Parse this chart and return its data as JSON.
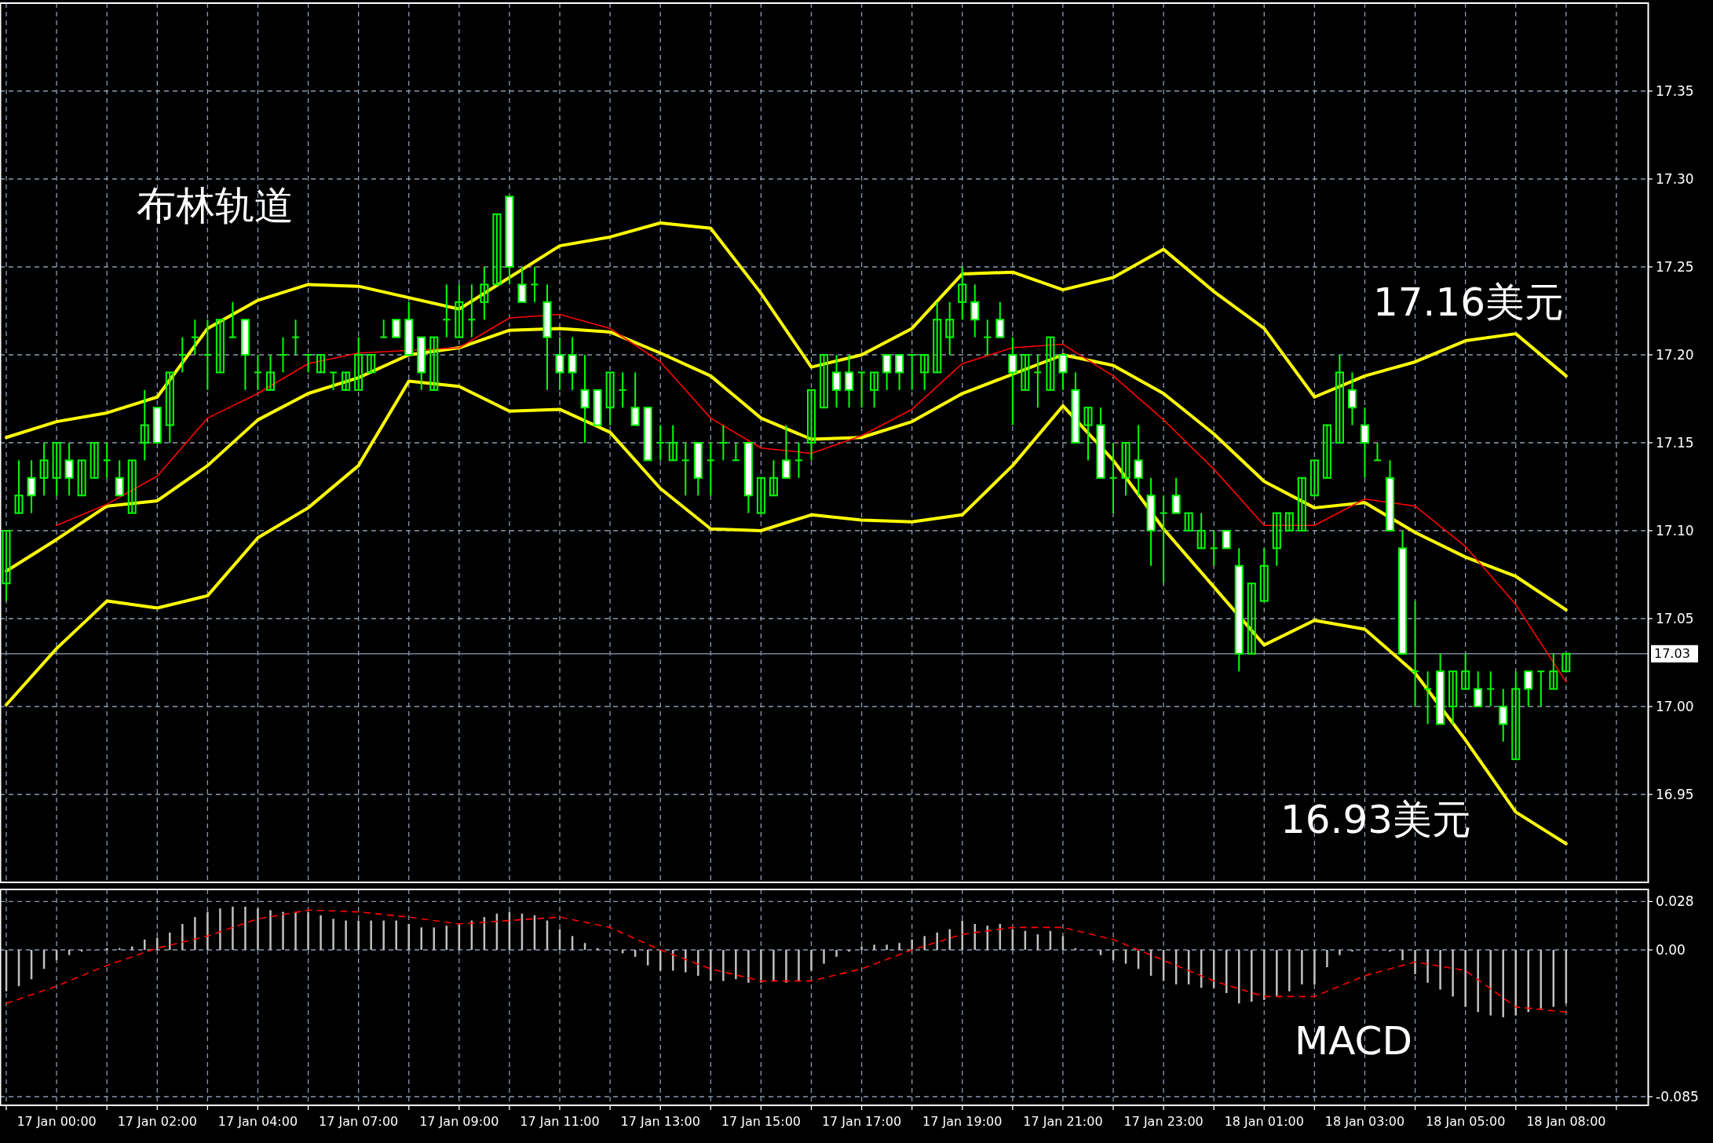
{
  "chart_data": [
    {
      "type": "candlestick",
      "color": "#00ff00",
      "grid": true,
      "tick_labels": "y",
      "ylim": [
        16.9,
        17.4
      ],
      "yticks": [
        16.95,
        {
          "value": 17.0,
          "label": "17.00"
        },
        17.05,
        {
          "value": 17.1,
          "label": "17.10"
        },
        17.15,
        {
          "value": 17.2,
          "label": "17.20"
        },
        17.25,
        {
          "value": 17.3,
          "label": "17.30"
        },
        17.35
      ],
      "ref_lines": [
        {
          "axis": "y",
          "value": 17.03,
          "label": "17.03",
          "color": "#778899"
        }
      ],
      "annotations": [
        "布林轨道",
        "17.16美元",
        "16.93美元"
      ],
      "categories": [
        null,
        null,
        null,
        null,
        null,
        null,
        null,
        null,
        null,
        null,
        null,
        null,
        null,
        null,
        null,
        null,
        null,
        null,
        null,
        null,
        null,
        null,
        null,
        null,
        null,
        null,
        null,
        null,
        null,
        null,
        null,
        null,
        null,
        null,
        null,
        null,
        null,
        null,
        null,
        null,
        null,
        null,
        null,
        null,
        null,
        null,
        null,
        null,
        null,
        null,
        null,
        null,
        null,
        null,
        null,
        null,
        null,
        null,
        null,
        null,
        null,
        null,
        null,
        null,
        null,
        null,
        null,
        null,
        null,
        null,
        null,
        null,
        null,
        null,
        null,
        null,
        null,
        null,
        null,
        null,
        null,
        null,
        null,
        null,
        null,
        null,
        null,
        null,
        null,
        null,
        null,
        null,
        null,
        null,
        null,
        null,
        null,
        null,
        null,
        null,
        null,
        null,
        null,
        null,
        null,
        null,
        null,
        null,
        null,
        null,
        null,
        null,
        null,
        null,
        null,
        null,
        null,
        null,
        null,
        null,
        null,
        null,
        null,
        null,
        null,
        null,
        null,
        null,
        null,
        null,
        null
      ],
      "ohlc": [
        [
          17.07,
          17.1,
          17.06,
          17.1
        ],
        [
          17.11,
          17.14,
          17.11,
          17.12
        ],
        [
          17.13,
          17.14,
          17.11,
          17.12
        ],
        [
          17.13,
          17.15,
          17.12,
          17.14
        ],
        [
          17.13,
          17.15,
          17.12,
          17.15
        ],
        [
          17.14,
          17.15,
          17.12,
          17.13
        ],
        [
          17.12,
          17.14,
          17.12,
          17.14
        ],
        [
          17.13,
          17.15,
          17.13,
          17.15
        ],
        [
          17.14,
          17.15,
          17.13,
          17.14
        ],
        [
          17.13,
          17.14,
          17.12,
          17.12
        ],
        [
          17.11,
          17.14,
          17.11,
          17.14
        ],
        [
          17.15,
          17.18,
          17.14,
          17.16
        ],
        [
          17.17,
          17.17,
          17.15,
          17.15
        ],
        [
          17.16,
          17.19,
          17.15,
          17.19
        ],
        [
          17.2,
          17.21,
          17.19,
          17.2
        ],
        [
          17.21,
          17.22,
          17.2,
          17.21
        ],
        [
          17.2,
          17.22,
          17.18,
          17.2
        ],
        [
          17.19,
          17.22,
          17.19,
          17.22
        ],
        [
          17.21,
          17.23,
          17.21,
          17.21
        ],
        [
          17.22,
          17.22,
          17.18,
          17.2
        ],
        [
          17.19,
          17.2,
          17.18,
          17.19
        ],
        [
          17.18,
          17.2,
          17.18,
          17.19
        ],
        [
          17.2,
          17.21,
          17.19,
          17.2
        ],
        [
          17.21,
          17.22,
          17.2,
          17.21
        ],
        [
          17.2,
          17.2,
          17.19,
          17.2
        ],
        [
          17.19,
          17.2,
          17.19,
          17.2
        ],
        [
          17.19,
          17.19,
          17.18,
          17.19
        ],
        [
          17.18,
          17.19,
          17.18,
          17.19
        ],
        [
          17.18,
          17.21,
          17.18,
          17.2
        ],
        [
          17.19,
          17.2,
          17.19,
          17.2
        ],
        [
          17.21,
          17.22,
          17.21,
          17.21
        ],
        [
          17.22,
          17.22,
          17.21,
          17.21
        ],
        [
          17.22,
          17.23,
          17.2,
          17.2
        ],
        [
          17.21,
          17.21,
          17.18,
          17.19
        ],
        [
          17.18,
          17.21,
          17.18,
          17.21
        ],
        [
          17.22,
          17.24,
          17.21,
          17.22
        ],
        [
          17.21,
          17.24,
          17.21,
          17.23
        ],
        [
          17.22,
          17.24,
          17.21,
          17.22
        ],
        [
          17.23,
          17.25,
          17.22,
          17.24
        ],
        [
          17.24,
          17.28,
          17.24,
          17.28
        ],
        [
          17.29,
          17.29,
          17.24,
          17.25
        ],
        [
          17.24,
          17.25,
          17.23,
          17.23
        ],
        [
          17.24,
          17.25,
          17.23,
          17.24
        ],
        [
          17.23,
          17.24,
          17.18,
          17.21
        ],
        [
          17.2,
          17.21,
          17.18,
          17.19
        ],
        [
          17.2,
          17.21,
          17.18,
          17.19
        ],
        [
          17.18,
          17.2,
          17.15,
          17.17
        ],
        [
          17.18,
          17.18,
          17.16,
          17.16
        ],
        [
          17.17,
          17.19,
          17.16,
          17.19
        ],
        [
          17.18,
          17.19,
          17.17,
          17.18
        ],
        [
          17.17,
          17.19,
          17.16,
          17.16
        ],
        [
          17.17,
          17.17,
          17.14,
          17.14
        ],
        [
          17.15,
          17.16,
          17.14,
          17.15
        ],
        [
          17.14,
          17.16,
          17.14,
          17.15
        ],
        [
          17.14,
          17.15,
          17.12,
          17.14
        ],
        [
          17.15,
          17.15,
          17.12,
          17.13
        ],
        [
          17.14,
          17.15,
          17.12,
          17.14
        ],
        [
          17.15,
          17.16,
          17.14,
          17.15
        ],
        [
          17.14,
          17.15,
          17.14,
          17.14
        ],
        [
          17.15,
          17.15,
          17.11,
          17.12
        ],
        [
          17.11,
          17.13,
          17.11,
          17.13
        ],
        [
          17.12,
          17.14,
          17.12,
          17.13
        ],
        [
          17.14,
          17.16,
          17.13,
          17.13
        ],
        [
          17.14,
          17.15,
          17.13,
          17.14
        ],
        [
          17.15,
          17.18,
          17.14,
          17.18
        ],
        [
          17.17,
          17.2,
          17.17,
          17.2
        ],
        [
          17.19,
          17.2,
          17.17,
          17.18
        ],
        [
          17.19,
          17.2,
          17.17,
          17.18
        ],
        [
          17.19,
          17.19,
          17.17,
          17.19
        ],
        [
          17.18,
          17.19,
          17.17,
          17.19
        ],
        [
          17.2,
          17.2,
          17.18,
          17.19
        ],
        [
          17.2,
          17.2,
          17.18,
          17.19
        ],
        [
          17.2,
          17.2,
          17.18,
          17.2
        ],
        [
          17.19,
          17.2,
          17.18,
          17.2
        ],
        [
          17.19,
          17.23,
          17.19,
          17.22
        ],
        [
          17.21,
          17.23,
          17.2,
          17.22
        ],
        [
          17.23,
          17.25,
          17.22,
          17.24
        ],
        [
          17.23,
          17.24,
          17.21,
          17.22
        ],
        [
          17.21,
          17.22,
          17.2,
          17.21
        ],
        [
          17.22,
          17.23,
          17.21,
          17.21
        ],
        [
          17.2,
          17.21,
          17.16,
          17.19
        ],
        [
          17.18,
          17.2,
          17.18,
          17.2
        ],
        [
          17.19,
          17.2,
          17.17,
          17.19
        ],
        [
          17.18,
          17.21,
          17.18,
          17.21
        ],
        [
          17.2,
          17.2,
          17.18,
          17.19
        ],
        [
          17.18,
          17.19,
          17.15,
          17.15
        ],
        [
          17.16,
          17.17,
          17.14,
          17.17
        ],
        [
          17.16,
          17.17,
          17.13,
          17.13
        ],
        [
          17.13,
          17.15,
          17.11,
          17.13
        ],
        [
          17.13,
          17.15,
          17.12,
          17.15
        ],
        [
          17.14,
          17.16,
          17.12,
          17.13
        ],
        [
          17.12,
          17.13,
          17.08,
          17.1
        ],
        [
          17.11,
          17.12,
          17.07,
          17.11
        ],
        [
          17.12,
          17.13,
          17.11,
          17.11
        ],
        [
          17.1,
          17.11,
          17.1,
          17.11
        ],
        [
          17.09,
          17.11,
          17.09,
          17.1
        ],
        [
          17.09,
          17.1,
          17.08,
          17.09
        ],
        [
          17.1,
          17.1,
          17.09,
          17.09
        ],
        [
          17.08,
          17.09,
          17.02,
          17.03
        ],
        [
          17.03,
          17.07,
          17.03,
          17.07
        ],
        [
          17.06,
          17.09,
          17.06,
          17.08
        ],
        [
          17.09,
          17.11,
          17.08,
          17.11
        ],
        [
          17.1,
          17.11,
          17.1,
          17.11
        ],
        [
          17.1,
          17.13,
          17.1,
          17.13
        ],
        [
          17.12,
          17.14,
          17.12,
          17.14
        ],
        [
          17.13,
          17.16,
          17.13,
          17.16
        ],
        [
          17.15,
          17.2,
          17.15,
          17.19
        ],
        [
          17.18,
          17.19,
          17.16,
          17.17
        ],
        [
          17.16,
          17.17,
          17.13,
          17.15
        ],
        [
          17.14,
          17.15,
          17.14,
          17.14
        ],
        [
          17.13,
          17.14,
          17.1,
          17.1
        ],
        [
          17.09,
          17.1,
          17.03,
          17.03
        ],
        [
          17.02,
          17.06,
          17.0,
          17.02
        ],
        [
          17.01,
          17.02,
          16.99,
          17.01
        ],
        [
          17.02,
          17.03,
          16.99,
          16.99
        ],
        [
          17.0,
          17.02,
          16.99,
          17.02
        ],
        [
          17.01,
          17.03,
          17.01,
          17.02
        ],
        [
          17.01,
          17.02,
          17.0,
          17.0
        ],
        [
          17.01,
          17.02,
          17.0,
          17.01
        ],
        [
          17.0,
          17.01,
          16.98,
          16.99
        ],
        [
          16.97,
          17.02,
          16.97,
          17.01
        ],
        [
          17.02,
          17.02,
          17.0,
          17.01
        ],
        [
          17.02,
          17.02,
          17.0,
          17.02
        ],
        [
          17.01,
          17.03,
          17.01,
          17.02
        ],
        [
          17.02,
          17.03,
          17.02,
          17.03
        ],
        null,
        null,
        null,
        null,
        null,
        null
      ],
      "series": [
        {
          "type": "line",
          "color": "#ffff00",
          "values": [
            17.153,
            null,
            null,
            null,
            17.162,
            null,
            null,
            null,
            17.167,
            null,
            null,
            null,
            17.176,
            null,
            null,
            null,
            17.215,
            null,
            null,
            null,
            17.231,
            null,
            null,
            null,
            17.24,
            null,
            null,
            null,
            17.239,
            null,
            null,
            null,
            null,
            null,
            null,
            null,
            17.226,
            null,
            null,
            null,
            null,
            null,
            null,
            null,
            17.262,
            null,
            null,
            null,
            17.267,
            null,
            null,
            null,
            17.275,
            null,
            null,
            null,
            17.272,
            null,
            null,
            null,
            17.235,
            null,
            null,
            null,
            17.193,
            null,
            null,
            null,
            17.2,
            null,
            null,
            null,
            17.215,
            null,
            null,
            null,
            17.246,
            null,
            null,
            null,
            17.247,
            null,
            null,
            null,
            17.237,
            null,
            null,
            null,
            17.244,
            null,
            null,
            null,
            17.26,
            null,
            null,
            null,
            17.236,
            null,
            null,
            null,
            17.215,
            null,
            null,
            null,
            17.176,
            null,
            null,
            null,
            17.188,
            null,
            null,
            null,
            17.196,
            null,
            null,
            null,
            17.208,
            null,
            null,
            null,
            17.212,
            null,
            null,
            null,
            17.188,
            null,
            null,
            null,
            null,
            null,
            null
          ]
        },
        {
          "type": "line",
          "color": "#ffff00",
          "values": [
            17.077,
            null,
            null,
            null,
            17.095,
            null,
            null,
            null,
            17.114,
            null,
            null,
            null,
            17.117,
            null,
            null,
            null,
            17.137,
            null,
            null,
            null,
            17.163,
            null,
            null,
            null,
            17.178,
            null,
            null,
            null,
            17.187,
            null,
            null,
            null,
            17.2,
            null,
            null,
            null,
            17.204,
            null,
            null,
            null,
            17.214,
            null,
            null,
            null,
            17.215,
            null,
            null,
            null,
            17.213,
            null,
            null,
            null,
            17.201,
            null,
            null,
            null,
            17.188,
            null,
            null,
            null,
            17.164,
            null,
            null,
            null,
            17.152,
            null,
            null,
            null,
            17.153,
            null,
            null,
            null,
            17.162,
            null,
            null,
            null,
            17.178,
            null,
            null,
            null,
            null,
            null,
            null,
            null,
            17.2,
            null,
            null,
            null,
            17.194,
            null,
            null,
            null,
            17.178,
            null,
            null,
            null,
            17.155,
            null,
            null,
            null,
            17.128,
            null,
            null,
            null,
            17.113,
            null,
            null,
            null,
            17.116,
            null,
            null,
            null,
            17.099,
            null,
            null,
            null,
            17.085,
            null,
            null,
            null,
            17.074,
            null,
            null,
            null,
            17.055,
            null,
            null,
            null,
            null,
            null,
            null
          ]
        },
        {
          "type": "line",
          "color": "#ffff00",
          "values": [
            17.001,
            null,
            null,
            null,
            17.033,
            null,
            null,
            null,
            17.06,
            null,
            null,
            null,
            17.056,
            null,
            null,
            null,
            17.063,
            null,
            null,
            null,
            17.096,
            null,
            null,
            null,
            17.113,
            null,
            null,
            null,
            17.137,
            null,
            null,
            null,
            17.185,
            null,
            null,
            null,
            17.182,
            null,
            null,
            null,
            17.168,
            null,
            null,
            null,
            17.169,
            null,
            null,
            null,
            17.156,
            null,
            null,
            null,
            17.124,
            null,
            null,
            null,
            17.101,
            null,
            null,
            null,
            17.1,
            null,
            null,
            null,
            17.109,
            null,
            null,
            null,
            17.106,
            null,
            null,
            null,
            17.105,
            null,
            null,
            null,
            17.109,
            null,
            null,
            null,
            17.137,
            null,
            null,
            null,
            17.171,
            null,
            null,
            null,
            17.14,
            null,
            null,
            null,
            17.101,
            null,
            null,
            null,
            17.068,
            null,
            null,
            null,
            17.035,
            null,
            null,
            null,
            17.049,
            null,
            null,
            null,
            17.044,
            null,
            null,
            null,
            17.019,
            null,
            null,
            null,
            16.981,
            null,
            null,
            null,
            16.94,
            null,
            null,
            null,
            16.922,
            null,
            null,
            null,
            null,
            null,
            null
          ]
        },
        {
          "type": "line",
          "color": "#ff0000",
          "values": [
            null,
            null,
            null,
            null,
            17.103,
            null,
            null,
            null,
            17.115,
            null,
            null,
            null,
            17.131,
            null,
            null,
            null,
            17.164,
            null,
            null,
            null,
            17.178,
            null,
            null,
            null,
            17.195,
            null,
            null,
            null,
            17.201,
            null,
            null,
            null,
            null,
            null,
            null,
            null,
            17.204,
            null,
            null,
            null,
            17.221,
            null,
            null,
            null,
            17.223,
            null,
            null,
            null,
            17.215,
            null,
            null,
            null,
            17.196,
            null,
            null,
            null,
            17.164,
            null,
            null,
            null,
            17.147,
            null,
            null,
            null,
            17.144,
            null,
            null,
            null,
            17.154,
            null,
            null,
            null,
            17.169,
            null,
            null,
            null,
            17.195,
            null,
            null,
            null,
            17.204,
            null,
            null,
            null,
            17.206,
            null,
            null,
            null,
            17.188,
            null,
            null,
            null,
            17.163,
            null,
            null,
            null,
            17.135,
            null,
            null,
            null,
            17.103,
            null,
            null,
            null,
            17.103,
            null,
            null,
            null,
            17.118,
            null,
            null,
            null,
            17.114,
            null,
            null,
            null,
            17.091,
            null,
            null,
            null,
            17.058,
            null,
            null,
            null,
            17.014,
            null,
            null,
            null,
            null,
            null,
            null
          ]
        }
      ]
    },
    {
      "type": "bar",
      "grid": true,
      "ylim": [
        -0.09,
        0.035
      ],
      "yticks": [
        -0.085,
        {
          "value": 0,
          "label": "0.00"
        },
        0.028
      ],
      "annotations": [
        "MACD"
      ],
      "categories": [
        null,
        null,
        null,
        null,
        "17 Jan 00:00",
        null,
        null,
        null,
        null,
        null,
        null,
        null,
        "17 Jan 02:00",
        null,
        null,
        null,
        null,
        null,
        null,
        null,
        "17 Jan 04:00",
        null,
        null,
        null,
        null,
        null,
        null,
        null,
        "17 Jan 07:00",
        null,
        null,
        null,
        null,
        null,
        null,
        null,
        "17 Jan 09:00",
        null,
        null,
        null,
        null,
        null,
        null,
        null,
        "17 Jan 11:00",
        null,
        null,
        null,
        null,
        null,
        null,
        null,
        "17 Jan 13:00",
        null,
        null,
        null,
        null,
        null,
        null,
        null,
        "17 Jan 15:00",
        null,
        null,
        null,
        null,
        null,
        null,
        null,
        "17 Jan 17:00",
        null,
        null,
        null,
        null,
        null,
        null,
        null,
        "17 Jan 19:00",
        null,
        null,
        null,
        null,
        null,
        null,
        null,
        "17 Jan 21:00",
        null,
        null,
        null,
        null,
        null,
        null,
        null,
        "17 Jan 23:00",
        null,
        null,
        null,
        null,
        null,
        null,
        null,
        "18 Jan 01:00",
        null,
        null,
        null,
        null,
        null,
        null,
        null,
        "18 Jan 03:00",
        null,
        null,
        null,
        null,
        null,
        null,
        null,
        "18 Jan 05:00",
        null,
        null,
        null,
        null,
        null,
        null,
        null,
        "18 Jan 08:00",
        null,
        null,
        null,
        null,
        null,
        null
      ],
      "series": [
        {
          "type": "bar",
          "color": "#c0c0c0",
          "values": [
            -0.024,
            -0.021,
            -0.017,
            -0.011,
            -0.006,
            -0.003,
            -0.001,
            0.0,
            0.001,
            0.001,
            0.002,
            0.006,
            0.007,
            0.01,
            0.015,
            0.019,
            0.022,
            0.024,
            0.025,
            0.025,
            0.024,
            0.023,
            0.022,
            0.022,
            0.022,
            0.02,
            0.018,
            0.017,
            0.017,
            0.017,
            0.017,
            0.017,
            0.015,
            0.013,
            0.013,
            0.014,
            0.015,
            0.017,
            0.019,
            0.021,
            0.022,
            0.021,
            0.02,
            0.017,
            0.012,
            0.008,
            0.004,
            0.001,
            0.0,
            -0.002,
            -0.004,
            -0.009,
            -0.012,
            -0.012,
            -0.013,
            -0.015,
            -0.018,
            -0.018,
            -0.017,
            -0.019,
            -0.019,
            -0.018,
            -0.019,
            -0.018,
            -0.012,
            -0.008,
            -0.004,
            -0.001,
            0.002,
            0.003,
            0.003,
            0.004,
            0.006,
            0.008,
            0.01,
            0.012,
            0.017,
            0.015,
            0.014,
            0.015,
            0.012,
            0.011,
            0.009,
            0.011,
            0.008,
            0.001,
            0.0,
            -0.003,
            -0.006,
            -0.008,
            -0.011,
            -0.015,
            -0.018,
            -0.02,
            -0.02,
            -0.022,
            -0.022,
            -0.025,
            -0.031,
            -0.03,
            -0.029,
            -0.027,
            -0.024,
            -0.02,
            -0.02,
            -0.01,
            -0.003,
            -0.001,
            0.0,
            0.0,
            -0.001,
            -0.006,
            -0.014,
            -0.019,
            -0.023,
            -0.027,
            -0.033,
            -0.036,
            -0.038,
            -0.039,
            -0.038,
            -0.036,
            -0.034,
            -0.033,
            -0.031,
            null,
            null,
            null,
            null,
            null,
            null
          ]
        },
        {
          "type": "line",
          "color": "#ff0000",
          "line_style": "dashed",
          "values": [
            -0.031,
            null,
            null,
            null,
            -0.021,
            null,
            null,
            null,
            -0.009,
            null,
            null,
            null,
            0.001,
            null,
            null,
            null,
            0.008,
            null,
            null,
            null,
            0.018,
            null,
            null,
            null,
            0.023,
            null,
            null,
            null,
            0.022,
            null,
            null,
            null,
            0.019,
            null,
            null,
            null,
            0.015,
            null,
            null,
            null,
            0.017,
            null,
            null,
            null,
            0.019,
            null,
            null,
            null,
            0.013,
            null,
            null,
            null,
            0.0,
            null,
            null,
            null,
            -0.011,
            null,
            null,
            null,
            -0.018,
            null,
            null,
            null,
            -0.018,
            null,
            null,
            null,
            -0.011,
            null,
            null,
            null,
            0.0,
            null,
            null,
            null,
            0.009,
            null,
            null,
            null,
            0.013,
            null,
            null,
            null,
            0.013,
            null,
            null,
            null,
            0.006,
            null,
            null,
            null,
            -0.006,
            null,
            null,
            null,
            -0.018,
            null,
            null,
            null,
            -0.027,
            null,
            null,
            null,
            -0.027,
            null,
            null,
            null,
            -0.015,
            null,
            null,
            null,
            -0.007,
            null,
            null,
            null,
            -0.012,
            null,
            null,
            null,
            -0.033,
            null,
            null,
            null,
            -0.036,
            null,
            null,
            null,
            null,
            null,
            null
          ]
        }
      ]
    }
  ]
}
